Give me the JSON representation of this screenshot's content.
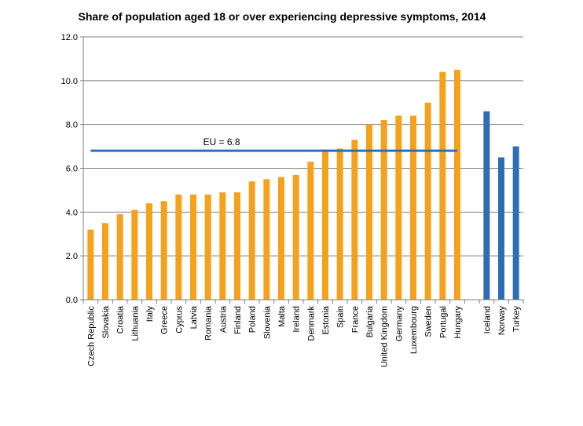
{
  "chart_data": {
    "type": "bar",
    "title": "Share of population aged 18 or over experiencing depressive symptoms, 2014",
    "xlabel": "",
    "ylabel": "",
    "ylim": [
      0,
      12
    ],
    "ytick_labels": [
      "0.0",
      "2.0",
      "4.0",
      "6.0",
      "8.0",
      "10.0",
      "12.0"
    ],
    "grid": true,
    "categories": [
      "Czech Republic",
      "Slovakia",
      "Croatia",
      "Lithuania",
      "Italy",
      "Greece",
      "Cyprus",
      "Latvia",
      "Romania",
      "Austria",
      "Finland",
      "Poland",
      "Slovenia",
      "Malta",
      "Ireland",
      "Denmark",
      "Estonia",
      "Spain",
      "France",
      "Bulgaria",
      "United Kingdom",
      "Germany",
      "Luxembourg",
      "Sweden",
      "Portugal",
      "Hungary",
      "",
      "Iceland",
      "Norway",
      "Turkey"
    ],
    "values": [
      3.2,
      3.5,
      3.9,
      4.1,
      4.4,
      4.5,
      4.8,
      4.8,
      4.8,
      4.9,
      4.9,
      5.4,
      5.5,
      5.6,
      5.7,
      6.3,
      6.8,
      6.9,
      7.3,
      8.0,
      8.2,
      8.4,
      8.4,
      9.0,
      10.4,
      10.5,
      null,
      8.6,
      6.5,
      7.0
    ],
    "groups": [
      "eu",
      "eu",
      "eu",
      "eu",
      "eu",
      "eu",
      "eu",
      "eu",
      "eu",
      "eu",
      "eu",
      "eu",
      "eu",
      "eu",
      "eu",
      "eu",
      "eu",
      "eu",
      "eu",
      "eu",
      "eu",
      "eu",
      "eu",
      "eu",
      "eu",
      "eu",
      "gap",
      "non-eu",
      "non-eu",
      "non-eu"
    ],
    "colors": {
      "eu": "#F5A11C",
      "non-eu": "#2E6DB4",
      "average_line": "#2E6DB4",
      "grid": "#7F7F7F"
    },
    "reference_line": {
      "label": "EU = 6.8",
      "value": 6.8
    }
  }
}
